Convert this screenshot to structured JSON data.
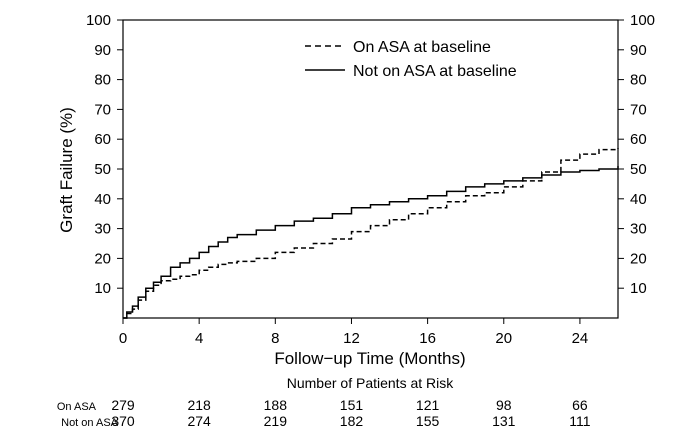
{
  "chart_data": {
    "type": "line",
    "ylabel": "Graft Failure (%)",
    "xlabel": "Follow−up Time (Months)",
    "xlim": [
      0,
      26
    ],
    "ylim": [
      0,
      100
    ],
    "x_ticks": [
      0,
      4,
      8,
      12,
      16,
      20,
      24
    ],
    "y_ticks": [
      10,
      20,
      30,
      40,
      50,
      60,
      70,
      80,
      90,
      100
    ],
    "x_tick_labels": [
      "0",
      "4",
      "8",
      "12",
      "16",
      "20",
      "24"
    ],
    "y_tick_labels": [
      "10",
      "20",
      "30",
      "40",
      "50",
      "60",
      "70",
      "80",
      "90",
      "100"
    ],
    "grid": false,
    "legend_position": "top-right",
    "series": [
      {
        "name": "On ASA at baseline",
        "style": "dashed",
        "color": "#000000",
        "points": [
          [
            0,
            0
          ],
          [
            0.2,
            1.5
          ],
          [
            0.5,
            3
          ],
          [
            0.8,
            6
          ],
          [
            1.2,
            9
          ],
          [
            1.6,
            11
          ],
          [
            2,
            12.5
          ],
          [
            2.5,
            13
          ],
          [
            3,
            14
          ],
          [
            3.5,
            14.5
          ],
          [
            4,
            16
          ],
          [
            4.5,
            17
          ],
          [
            5,
            18
          ],
          [
            5.5,
            18.5
          ],
          [
            6,
            19
          ],
          [
            7,
            20
          ],
          [
            8,
            22
          ],
          [
            9,
            23.5
          ],
          [
            10,
            25
          ],
          [
            11,
            26.5
          ],
          [
            12,
            29
          ],
          [
            13,
            31
          ],
          [
            14,
            33
          ],
          [
            15,
            35
          ],
          [
            16,
            37
          ],
          [
            17,
            39
          ],
          [
            18,
            41
          ],
          [
            19,
            42
          ],
          [
            20,
            44
          ],
          [
            21,
            46
          ],
          [
            22,
            49
          ],
          [
            23,
            53
          ],
          [
            24,
            55
          ],
          [
            25,
            56.5
          ],
          [
            26,
            57
          ]
        ]
      },
      {
        "name": "Not on ASA at baseline",
        "style": "solid",
        "color": "#000000",
        "points": [
          [
            0,
            0
          ],
          [
            0.2,
            2
          ],
          [
            0.5,
            4
          ],
          [
            0.8,
            7
          ],
          [
            1.2,
            10
          ],
          [
            1.6,
            12
          ],
          [
            2,
            14
          ],
          [
            2.5,
            17
          ],
          [
            3,
            18.5
          ],
          [
            3.5,
            20
          ],
          [
            4,
            22
          ],
          [
            4.5,
            24
          ],
          [
            5,
            25.5
          ],
          [
            5.5,
            27
          ],
          [
            6,
            28
          ],
          [
            7,
            29.5
          ],
          [
            8,
            31
          ],
          [
            9,
            32.5
          ],
          [
            10,
            33.5
          ],
          [
            11,
            35
          ],
          [
            12,
            37
          ],
          [
            13,
            38
          ],
          [
            14,
            39
          ],
          [
            15,
            40
          ],
          [
            16,
            41
          ],
          [
            17,
            42.5
          ],
          [
            18,
            44
          ],
          [
            19,
            45
          ],
          [
            20,
            46
          ],
          [
            21,
            47
          ],
          [
            22,
            48
          ],
          [
            23,
            49
          ],
          [
            24,
            49.5
          ],
          [
            25,
            50
          ],
          [
            26,
            51
          ]
        ]
      }
    ],
    "risk_table": {
      "title": "Number of Patients at Risk",
      "rows": [
        {
          "label": "On ASA",
          "values": [
            "279",
            "218",
            "188",
            "151",
            "121",
            "98",
            "66"
          ]
        },
        {
          "label": "Not on ASA",
          "values": [
            "370",
            "274",
            "219",
            "182",
            "155",
            "131",
            "111"
          ]
        }
      ]
    }
  }
}
